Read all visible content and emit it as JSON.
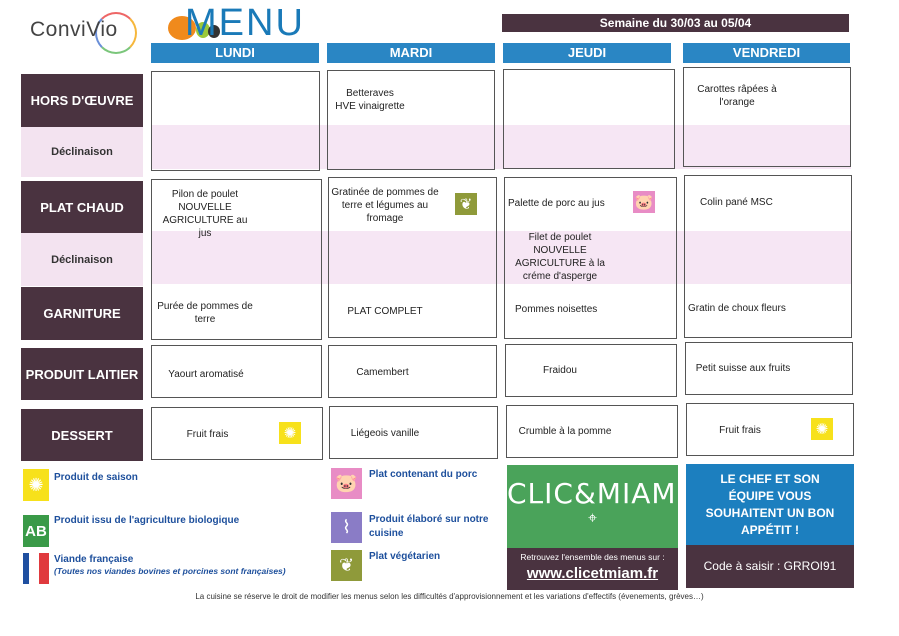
{
  "header": {
    "logo": "ConviVio",
    "title": "MENU",
    "week": "Semaine du 30/03 au 05/04"
  },
  "days": [
    "LUNDI",
    "MARDI",
    "JEUDI",
    "VENDREDI"
  ],
  "rows": {
    "hors_doeuvre": "HORS D'ŒUVRE",
    "declinaison": "Déclinaison",
    "plat_chaud": "PLAT CHAUD",
    "garniture": "GARNITURE",
    "produit_laitier": "PRODUIT LAITIER",
    "dessert": "DESSERT"
  },
  "menu": {
    "hors_doeuvre": [
      "",
      "Betteraves HVE vinaigrette",
      "",
      "Carottes râpées à l'orange"
    ],
    "plat_chaud": [
      "Pilon de poulet NOUVELLE AGRICULTURE au jus",
      "Gratinée de pommes de terre et légumes au fromage",
      "Palette de porc au jus",
      "Colin pané MSC"
    ],
    "plat_chaud_declinaison": [
      "",
      "",
      "Filet de poulet NOUVELLE AGRICULTURE à la créme d'asperge",
      ""
    ],
    "garniture": [
      "Purée de pommes de terre",
      "PLAT COMPLET",
      "Pommes noisettes",
      "Gratin de choux fleurs"
    ],
    "produit_laitier": [
      "Yaourt aromatisé",
      "Camembert",
      "Fraidou",
      "Petit suisse aux fruits"
    ],
    "dessert": [
      "Fruit frais",
      "Liégeois vanille",
      "Crumble à la pomme",
      "Fruit frais"
    ]
  },
  "icons": {
    "mardi_plat": "vegetarian-leaf-icon",
    "jeudi_plat": "pig-icon",
    "lundi_dessert": "sun-icon",
    "vendredi_dessert": "sun-icon"
  },
  "legend": {
    "saison": "Produit de saison",
    "bio": "Produit issu de l'agriculture biologique",
    "viande": "Viande française",
    "viande_note": "(Toutes nos viandes bovines et porcines sont françaises)",
    "porc": "Plat contenant du porc",
    "cuisine": "Produit élaboré sur notre cuisine",
    "vegetarien": "Plat végétarien"
  },
  "clic": {
    "logo": "CLIC&MIAM!",
    "text": "Retrouvez l'ensemble des menus sur :",
    "url": "www.clicetmiam.fr"
  },
  "chef": {
    "message": "LE CHEF ET SON ÉQUIPE VOUS SOUHAITENT UN BON APPÉTIT !",
    "code": "Code à saisir : GRROI91"
  },
  "footer": "La cuisine se réserve le droit de modifier les menus selon les difficultés d'approvisionnement et les variations d'effectifs (évenements, grèves…)",
  "colors": {
    "blue": "#2a86c4",
    "purple": "#4a3340",
    "pink": "#f3e3f0",
    "green": "#4aa35a"
  }
}
